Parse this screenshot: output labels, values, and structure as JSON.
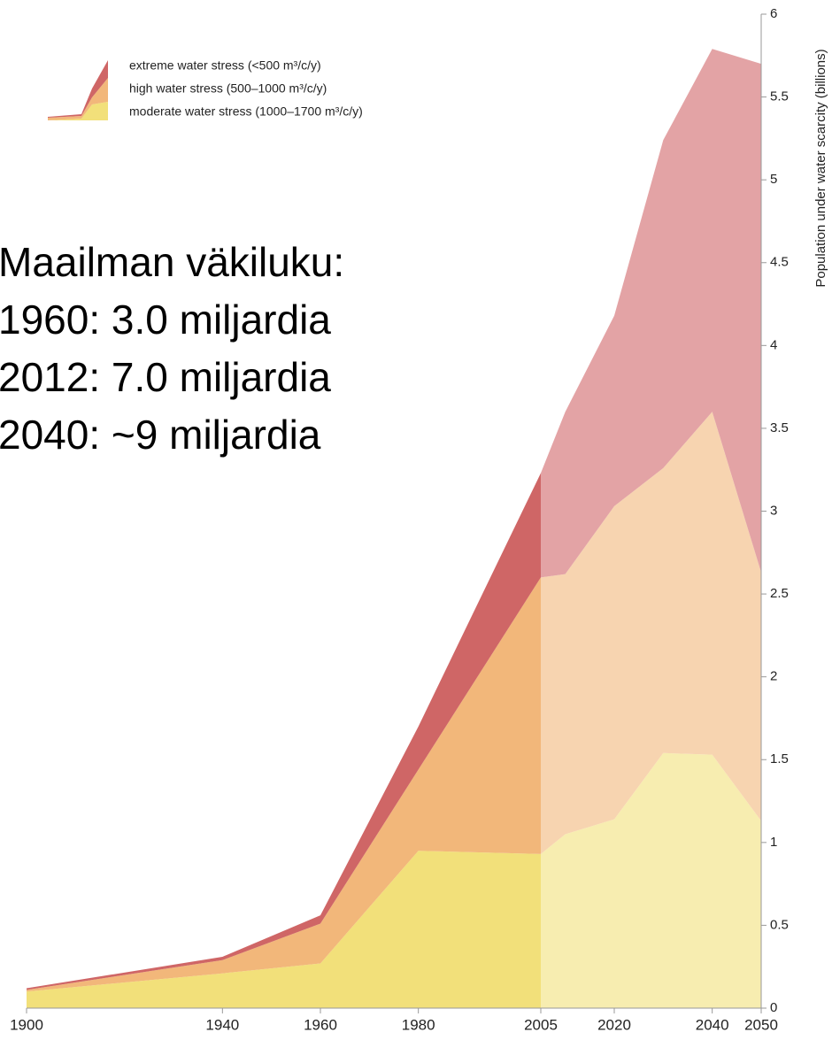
{
  "chart_data": {
    "type": "stacked_area",
    "y_axis_label": "Population under water scarcity (billions)",
    "annotations": [
      "Maailman väkiluku:",
      "1960: 3.0 miljardia",
      "2012: 7.0 miljardia",
      "2040: ~9 miljardia"
    ],
    "x": [
      1900,
      1940,
      1960,
      1980,
      2005,
      2010,
      2020,
      2030,
      2040,
      2050
    ],
    "projection_from": 2005,
    "series": [
      {
        "name": "moderate water stress (1000–1700 m³/c/y)",
        "color": "#f2e07a",
        "projection_color": "#f7edb0",
        "values": [
          0.1,
          0.21,
          0.27,
          0.95,
          0.93,
          1.05,
          1.14,
          1.54,
          1.53,
          1.13
        ]
      },
      {
        "name": "high water stress (500–1000 m³/c/y)",
        "color": "#f2b77a",
        "projection_color": "#f7d4b0",
        "values": [
          0.01,
          0.08,
          0.24,
          0.49,
          1.67,
          1.57,
          1.89,
          1.72,
          2.07,
          1.5
        ]
      },
      {
        "name": "extreme water stress (<500 m³/c/y)",
        "color": "#cf6666",
        "projection_color": "#e3a3a5",
        "values": [
          0.01,
          0.02,
          0.05,
          0.26,
          0.63,
          0.98,
          1.15,
          1.98,
          2.19,
          3.07
        ]
      }
    ],
    "xlim": [
      1900,
      2050
    ],
    "xticks": [
      1900,
      1940,
      1960,
      1980,
      2005,
      2020,
      2040,
      2050
    ],
    "ylim": [
      0,
      6
    ],
    "yticks": [
      0,
      0.5,
      1,
      1.5,
      2,
      2.5,
      3,
      3.5,
      4,
      4.5,
      5,
      5.5,
      6
    ],
    "y_axis_side": "right",
    "legend": "upper left"
  }
}
